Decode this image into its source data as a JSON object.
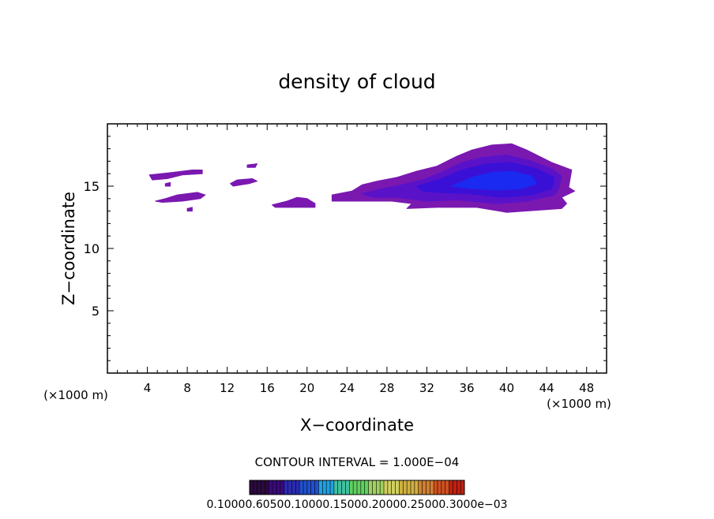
{
  "chart_data": {
    "type": "heatmap",
    "title": "density of cloud",
    "xlabel": "X−coordinate",
    "ylabel": "Z−coordinate",
    "x_unit_left": "(×1000 m)",
    "x_unit_right": "(×1000 m)",
    "xlim": [
      0,
      50
    ],
    "ylim": [
      0,
      20
    ],
    "xticks": [
      4,
      8,
      12,
      16,
      20,
      24,
      28,
      32,
      36,
      40,
      44,
      48
    ],
    "yticks": [
      5,
      10,
      15
    ],
    "contour_interval_text": "CONTOUR INTERVAL = 1.000E−04",
    "colorbar_labels_text": "0.10000.60500.10000.15000.20000.25000.3000e−03",
    "colorbar_colors": [
      "#2a0a3c",
      "#3a0a7a",
      "#2a2ab0",
      "#2050d0",
      "#20a0e0",
      "#40c0a0",
      "#60d060",
      "#a0d060",
      "#d0d060",
      "#d0b040",
      "#d08030",
      "#d05020",
      "#c02010"
    ],
    "cloud_levels": [
      {
        "level": 1,
        "color": "#7a18b0"
      },
      {
        "level": 2,
        "color": "#5a12c8"
      },
      {
        "level": 3,
        "color": "#3a10d6"
      },
      {
        "level": 4,
        "color": "#1a2af0"
      }
    ],
    "regions": [
      {
        "level": 1,
        "points": [
          [
            4.2,
            15.9
          ],
          [
            6.5,
            16.1
          ],
          [
            8.5,
            16.3
          ],
          [
            9.5,
            16.3
          ],
          [
            9.5,
            16.0
          ],
          [
            7.5,
            15.9
          ],
          [
            6.0,
            15.6
          ],
          [
            4.5,
            15.5
          ]
        ]
      },
      {
        "level": 1,
        "points": [
          [
            4.8,
            13.8
          ],
          [
            5.8,
            14.0
          ],
          [
            7.0,
            14.3
          ],
          [
            9.0,
            14.5
          ],
          [
            9.8,
            14.3
          ],
          [
            9.3,
            14.0
          ],
          [
            7.5,
            13.8
          ],
          [
            5.5,
            13.7
          ]
        ]
      },
      {
        "level": 1,
        "points": [
          [
            5.8,
            15.2
          ],
          [
            6.3,
            15.3
          ],
          [
            6.3,
            15.0
          ],
          [
            5.8,
            15.0
          ]
        ]
      },
      {
        "level": 1,
        "points": [
          [
            8.0,
            13.2
          ],
          [
            8.5,
            13.3
          ],
          [
            8.5,
            13.0
          ],
          [
            8.0,
            13.0
          ]
        ]
      },
      {
        "level": 1,
        "points": [
          [
            12.3,
            15.2
          ],
          [
            13.0,
            15.5
          ],
          [
            14.5,
            15.6
          ],
          [
            15.0,
            15.4
          ],
          [
            14.2,
            15.2
          ],
          [
            12.6,
            15.0
          ]
        ]
      },
      {
        "level": 1,
        "points": [
          [
            14.0,
            16.7
          ],
          [
            15.0,
            16.8
          ],
          [
            14.8,
            16.5
          ],
          [
            14.0,
            16.5
          ]
        ]
      },
      {
        "level": 1,
        "points": [
          [
            16.5,
            13.5
          ],
          [
            18.0,
            13.8
          ],
          [
            19.0,
            14.1
          ],
          [
            20.0,
            14.0
          ],
          [
            20.8,
            13.6
          ],
          [
            20.8,
            13.3
          ],
          [
            18.5,
            13.3
          ],
          [
            16.8,
            13.3
          ]
        ]
      },
      {
        "level": 1,
        "points": [
          [
            22.5,
            14.3
          ],
          [
            24.5,
            14.6
          ],
          [
            25.5,
            15.1
          ],
          [
            27.0,
            15.4
          ],
          [
            29.0,
            15.7
          ],
          [
            31.0,
            16.2
          ],
          [
            33.0,
            16.6
          ],
          [
            35.0,
            17.4
          ],
          [
            36.5,
            17.9
          ],
          [
            38.5,
            18.3
          ],
          [
            40.5,
            18.4
          ],
          [
            42.0,
            17.9
          ],
          [
            44.5,
            16.9
          ],
          [
            46.5,
            16.3
          ],
          [
            46.2,
            14.9
          ],
          [
            46.8,
            14.6
          ],
          [
            45.5,
            14.1
          ],
          [
            46.0,
            13.6
          ],
          [
            45.5,
            13.2
          ],
          [
            40.0,
            12.9
          ],
          [
            37.0,
            13.3
          ],
          [
            33.0,
            13.3
          ],
          [
            30.0,
            13.2
          ],
          [
            30.5,
            13.6
          ],
          [
            28.5,
            13.8
          ],
          [
            24.5,
            13.8
          ],
          [
            22.5,
            13.8
          ]
        ]
      },
      {
        "level": 2,
        "points": [
          [
            25.5,
            14.4
          ],
          [
            27.5,
            14.8
          ],
          [
            29.5,
            15.1
          ],
          [
            31.5,
            15.5
          ],
          [
            33.5,
            16.1
          ],
          [
            35.5,
            16.9
          ],
          [
            37.5,
            17.3
          ],
          [
            40.0,
            17.5
          ],
          [
            42.5,
            17.0
          ],
          [
            44.5,
            16.4
          ],
          [
            45.5,
            15.8
          ],
          [
            45.2,
            14.8
          ],
          [
            44.8,
            14.3
          ],
          [
            42.0,
            13.8
          ],
          [
            39.0,
            13.6
          ],
          [
            35.0,
            13.9
          ],
          [
            32.0,
            13.8
          ],
          [
            29.0,
            14.1
          ],
          [
            26.5,
            14.1
          ]
        ]
      },
      {
        "level": 3,
        "points": [
          [
            31.0,
            15.0
          ],
          [
            33.5,
            15.6
          ],
          [
            35.5,
            16.3
          ],
          [
            38.0,
            16.8
          ],
          [
            40.5,
            16.9
          ],
          [
            43.0,
            16.4
          ],
          [
            44.8,
            15.7
          ],
          [
            44.5,
            14.8
          ],
          [
            42.5,
            14.3
          ],
          [
            39.5,
            14.1
          ],
          [
            36.0,
            14.4
          ],
          [
            33.0,
            14.5
          ],
          [
            31.5,
            14.6
          ]
        ]
      },
      {
        "level": 4,
        "points": [
          [
            34.5,
            15.0
          ],
          [
            36.5,
            15.7
          ],
          [
            38.5,
            16.1
          ],
          [
            40.5,
            16.2
          ],
          [
            42.5,
            15.8
          ],
          [
            43.0,
            15.2
          ],
          [
            41.5,
            14.8
          ],
          [
            39.0,
            14.7
          ],
          [
            36.5,
            14.8
          ]
        ]
      }
    ]
  }
}
